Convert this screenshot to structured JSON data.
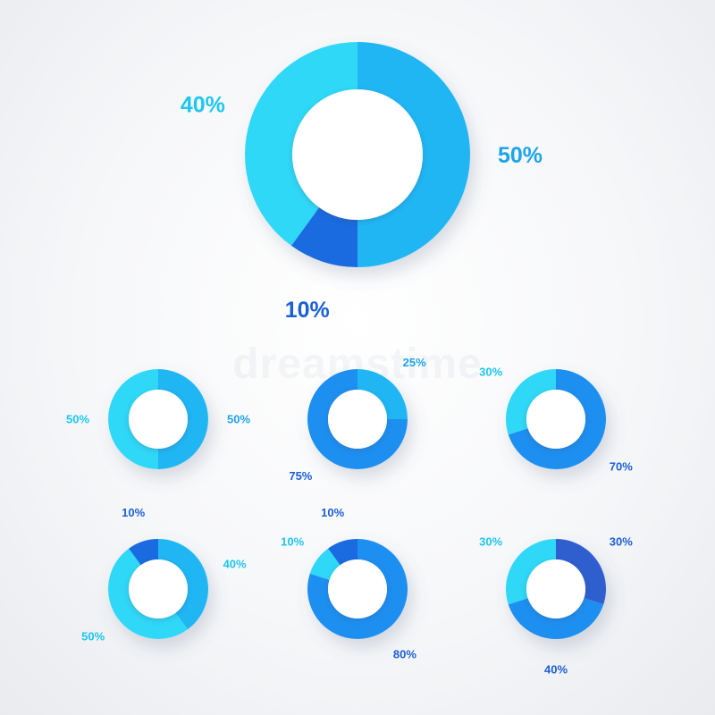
{
  "colors": {
    "cyan": "#2fd8f7",
    "sky": "#20b6f4",
    "blue": "#1d8ff0",
    "deep": "#1a6ae0",
    "navy": "#2f5fcf",
    "label_light": "#1ec6f0",
    "label_mid": "#1ea4ea",
    "label_dark": "#1b5fd6"
  },
  "watermark": "dreamstime",
  "chart_data": [
    {
      "type": "pie",
      "values": [
        50,
        10,
        40
      ],
      "labels": [
        "50%",
        "10%",
        "40%"
      ],
      "colors": [
        "sky",
        "deep",
        "cyan"
      ],
      "label_colors": [
        "label_mid",
        "label_dark",
        "label_light"
      ],
      "legend": "none"
    },
    {
      "type": "pie",
      "values": [
        50,
        50
      ],
      "labels": [
        "50%",
        "50%"
      ],
      "colors": [
        "sky",
        "cyan"
      ],
      "label_colors": [
        "label_mid",
        "label_light"
      ],
      "legend": "none"
    },
    {
      "type": "pie",
      "values": [
        25,
        75
      ],
      "labels": [
        "25%",
        "75%"
      ],
      "colors": [
        "sky",
        "blue"
      ],
      "label_colors": [
        "label_mid",
        "label_dark"
      ],
      "legend": "none"
    },
    {
      "type": "pie",
      "values": [
        70,
        30
      ],
      "labels": [
        "70%",
        "30%"
      ],
      "colors": [
        "blue",
        "cyan"
      ],
      "label_colors": [
        "label_dark",
        "label_light"
      ],
      "legend": "none"
    },
    {
      "type": "pie",
      "values": [
        40,
        50,
        10
      ],
      "labels": [
        "40%",
        "50%",
        "10%"
      ],
      "colors": [
        "sky",
        "cyan",
        "deep"
      ],
      "label_colors": [
        "label_light",
        "label_light",
        "label_dark"
      ],
      "legend": "none"
    },
    {
      "type": "pie",
      "values": [
        80,
        10,
        10
      ],
      "labels": [
        "80%",
        "10%",
        "10%"
      ],
      "colors": [
        "blue",
        "cyan",
        "deep"
      ],
      "label_colors": [
        "label_dark",
        "label_light",
        "label_dark"
      ],
      "legend": "none"
    },
    {
      "type": "pie",
      "values": [
        30,
        40,
        30
      ],
      "labels": [
        "30%",
        "40%",
        "30%"
      ],
      "colors": [
        "navy",
        "blue",
        "cyan"
      ],
      "label_colors": [
        "label_dark",
        "label_dark",
        "label_light"
      ],
      "legend": "none"
    }
  ]
}
